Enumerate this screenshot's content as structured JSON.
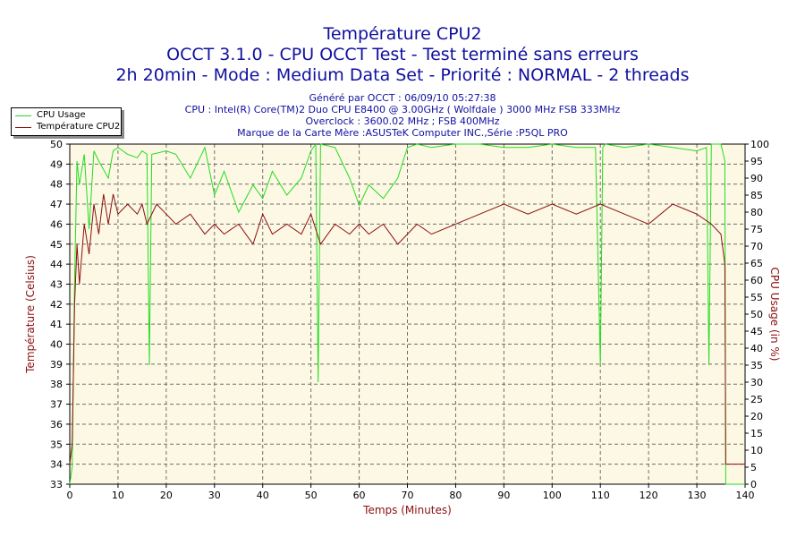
{
  "header": {
    "title1": "Température CPU2",
    "title2": "OCCT 3.1.0 - CPU OCCT Test - Test terminé sans erreurs",
    "title3": "2h 20min - Mode : Medium Data Set - Priorité : NORMAL - 2 threads",
    "info1": "Généré par OCCT : 06/09/10 05:27:38",
    "info2": "CPU : Intel(R) Core(TM)2 Duo CPU E8400 @ 3.00GHz ( Wolfdale ) 3000 MHz FSB 333MHz",
    "info3": "Overclock : 3600.02 MHz ; FSB 400MHz",
    "info4": "Marque de la Carte Mère :ASUSTeK Computer INC.,Série :P5QL PRO"
  },
  "colors": {
    "plot_bg": "#fdf8e3",
    "grid": "#6f6f6f",
    "usage": "#22dd22",
    "temp": "#8b1010",
    "temp_label": "#8b1010",
    "text_blue": "#1010a0"
  },
  "chart_data": {
    "type": "line",
    "xlabel": "Temps (Minutes)",
    "ylabel_left": "Température (Celsius)",
    "ylabel_right": "CPU Usage (in %)",
    "xlim": [
      0,
      140
    ],
    "ylim_left": [
      33,
      50
    ],
    "ylim_right": [
      0,
      100
    ],
    "x_ticks": [
      0,
      10,
      20,
      30,
      40,
      50,
      60,
      70,
      80,
      90,
      100,
      110,
      120,
      130,
      140
    ],
    "y_left_ticks": [
      33,
      34,
      35,
      36,
      37,
      38,
      39,
      40,
      41,
      42,
      43,
      44,
      45,
      46,
      47,
      48,
      49,
      50
    ],
    "y_right_ticks": [
      0,
      5,
      10,
      15,
      20,
      25,
      30,
      35,
      40,
      45,
      50,
      55,
      60,
      65,
      70,
      75,
      80,
      85,
      90,
      95,
      100
    ],
    "grid": true,
    "legend_position": "top-left",
    "series": [
      {
        "name": "CPU Usage",
        "axis": "right",
        "x": [
          0,
          0.5,
          1,
          1.5,
          2,
          3,
          4,
          5,
          6,
          8,
          9,
          10,
          12,
          14,
          15,
          16,
          16.5,
          17,
          20,
          22,
          25,
          28,
          30,
          32,
          35,
          38,
          40,
          42,
          45,
          48,
          50,
          51,
          51.5,
          52,
          55,
          58,
          60,
          62,
          65,
          68,
          70,
          72,
          75,
          80,
          85,
          90,
          95,
          100,
          105,
          109,
          110,
          110.5,
          111,
          115,
          120,
          125,
          130,
          132,
          132.5,
          133,
          135,
          135.8,
          136,
          140
        ],
        "values": [
          0,
          5,
          60,
          95,
          88,
          97,
          75,
          98,
          95,
          90,
          98,
          99,
          97,
          96,
          98,
          97,
          35,
          97,
          98,
          97,
          90,
          99,
          85,
          92,
          80,
          88,
          84,
          92,
          85,
          90,
          98,
          100,
          30,
          100,
          99,
          90,
          82,
          88,
          84,
          90,
          99,
          100,
          99,
          100,
          100,
          99,
          99,
          100,
          99,
          99,
          35,
          99,
          100,
          99,
          100,
          99,
          98,
          99,
          35,
          100,
          100,
          95,
          0,
          0
        ]
      },
      {
        "name": "Température CPU2",
        "axis": "left",
        "x": [
          0,
          0.5,
          1,
          1.5,
          2,
          3,
          4,
          5,
          6,
          7,
          8,
          9,
          10,
          12,
          14,
          15,
          16,
          18,
          20,
          22,
          25,
          28,
          30,
          32,
          35,
          38,
          40,
          42,
          45,
          48,
          50,
          52,
          55,
          58,
          60,
          62,
          65,
          68,
          70,
          72,
          75,
          80,
          85,
          90,
          95,
          100,
          105,
          110,
          115,
          120,
          125,
          130,
          133,
          135,
          135.8,
          136,
          140
        ],
        "values": [
          34,
          35,
          42,
          45,
          43,
          46,
          44.5,
          47,
          45.5,
          47.5,
          46,
          47.5,
          46.5,
          47,
          46.5,
          47,
          46,
          47,
          46.5,
          46,
          46.5,
          45.5,
          46,
          45.5,
          46,
          45,
          46.5,
          45.5,
          46,
          45.5,
          46.5,
          45,
          46,
          45.5,
          46,
          45.5,
          46,
          45,
          45.5,
          46,
          45.5,
          46,
          46.5,
          47,
          46.5,
          47,
          46.5,
          47,
          46.5,
          46,
          47,
          46.5,
          46,
          45.5,
          44,
          34,
          34
        ]
      }
    ]
  }
}
